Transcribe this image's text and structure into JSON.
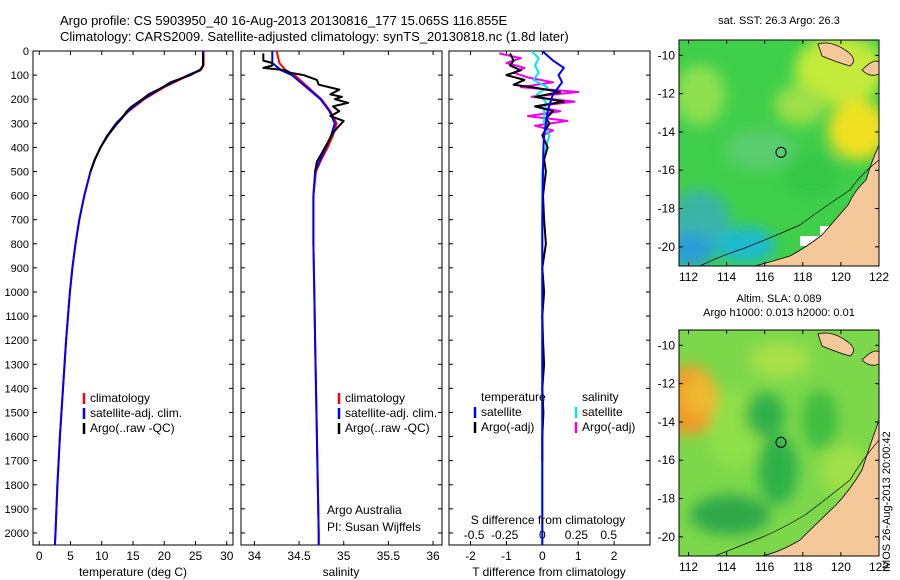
{
  "header": {
    "title_line1": "Argo profile: CS 5903950_40 16-Aug-2013 20130816_177 15.065S 116.855E",
    "title_line2": "Climatology: CARS2009. Satellite-adjusted climatology: synTS_20130818.nc (1.8d later)"
  },
  "credit": "IMOS 26-Aug-2013 20:00:42",
  "colors": {
    "climatology": "#ff0000",
    "satellite": "#0000ff",
    "argo": "#000000",
    "salinity_satellite": "#00e5ee",
    "salinity_argo": "#ee00ee",
    "land": "#f5c89a"
  },
  "chart_data": [
    {
      "id": "temperature",
      "type": "line",
      "xlabel": "temperature (deg C)",
      "ylabel": "",
      "xlim": [
        -1,
        31
      ],
      "ylim": [
        2050,
        0
      ],
      "xticks": [
        0,
        5,
        10,
        15,
        20,
        25,
        30
      ],
      "yticks": [
        0,
        100,
        200,
        300,
        400,
        500,
        600,
        700,
        800,
        900,
        1000,
        1100,
        1200,
        1300,
        1400,
        1500,
        1600,
        1700,
        1800,
        1900,
        2000
      ],
      "legend": [
        "climatology",
        "satellite-adj. clim.",
        "Argo(..raw -QC)"
      ],
      "series": [
        {
          "name": "climatology",
          "color": "#ff0000",
          "depth": [
            0,
            60,
            80,
            100,
            150,
            200,
            250,
            300,
            350,
            400,
            450,
            500,
            600,
            700,
            800,
            900,
            1000,
            1200,
            1400,
            1600,
            1800,
            2000,
            2050
          ],
          "values": [
            26.3,
            26.3,
            25.8,
            24.0,
            20.0,
            16.8,
            14.3,
            12.4,
            11.0,
            9.8,
            8.9,
            8.2,
            7.2,
            6.4,
            5.8,
            5.3,
            4.9,
            4.3,
            3.8,
            3.3,
            2.9,
            2.6,
            2.5
          ]
        },
        {
          "name": "satellite-adj. clim.",
          "color": "#0000ff",
          "depth": [
            0,
            60,
            80,
            100,
            150,
            200,
            250,
            300,
            350,
            400,
            450,
            500,
            600,
            700,
            800,
            900,
            1000,
            1200,
            1400,
            1600,
            1800,
            2000,
            2050
          ],
          "values": [
            26.2,
            26.2,
            25.7,
            23.8,
            19.8,
            16.6,
            14.2,
            12.3,
            10.9,
            9.8,
            8.9,
            8.2,
            7.2,
            6.4,
            5.8,
            5.3,
            4.9,
            4.3,
            3.8,
            3.3,
            2.9,
            2.6,
            2.5
          ]
        },
        {
          "name": "Argo(..raw -QC)",
          "color": "#000000",
          "depth": [
            10,
            60,
            75,
            100,
            130,
            150,
            180,
            200,
            230,
            250,
            280,
            300,
            350,
            400,
            450,
            500
          ],
          "values": [
            26.2,
            26.2,
            25.9,
            24.2,
            21.0,
            19.8,
            17.5,
            16.5,
            14.8,
            14.0,
            13.2,
            12.5,
            11.0,
            9.8,
            8.9,
            8.2
          ]
        }
      ]
    },
    {
      "id": "salinity",
      "type": "line",
      "xlabel": "salinity",
      "ylabel": "",
      "xlim": [
        33.85,
        36.1
      ],
      "ylim": [
        2050,
        0
      ],
      "xticks": [
        34,
        34.5,
        35,
        35.5,
        36
      ],
      "xticklabels": [
        "34",
        "34.5",
        "35",
        "35.5",
        "36"
      ],
      "legend": [
        "climatology",
        "satellite-adj. clim.",
        "Argo(..raw -QC)"
      ],
      "annotation": [
        "Argo Australia",
        "PI: Susan Wijffels"
      ],
      "series": [
        {
          "name": "climatology",
          "color": "#ff0000",
          "depth": [
            0,
            50,
            80,
            100,
            150,
            200,
            250,
            300,
            350,
            400,
            450,
            500,
            600,
            800,
            1000,
            1200,
            1400,
            1600,
            1800,
            2000,
            2050
          ],
          "values": [
            34.25,
            34.28,
            34.35,
            34.45,
            34.6,
            34.75,
            34.85,
            34.92,
            34.88,
            34.82,
            34.75,
            34.69,
            34.66,
            34.66,
            34.67,
            34.68,
            34.69,
            34.7,
            34.71,
            34.72,
            34.72
          ]
        },
        {
          "name": "satellite-adj. clim.",
          "color": "#0000ff",
          "depth": [
            0,
            50,
            80,
            100,
            150,
            200,
            250,
            300,
            350,
            400,
            450,
            500,
            600,
            800,
            1000,
            1200,
            1400,
            1600,
            1800,
            2000,
            2050
          ],
          "values": [
            34.2,
            34.2,
            34.3,
            34.42,
            34.58,
            34.74,
            34.84,
            34.9,
            34.86,
            34.8,
            34.74,
            34.68,
            34.66,
            34.66,
            34.67,
            34.68,
            34.69,
            34.7,
            34.71,
            34.72,
            34.72
          ]
        },
        {
          "name": "Argo(..raw -QC)",
          "color": "#000000",
          "depth": [
            10,
            40,
            50,
            60,
            70,
            80,
            90,
            100,
            120,
            140,
            160,
            180,
            190,
            200,
            215,
            230,
            250,
            270,
            290,
            310,
            340,
            380,
            420,
            460,
            500
          ],
          "values": [
            34.1,
            34.1,
            34.2,
            34.2,
            34.1,
            34.35,
            34.4,
            34.55,
            34.7,
            34.72,
            34.95,
            34.85,
            34.98,
            34.9,
            35.05,
            34.88,
            34.95,
            34.85,
            35.0,
            34.95,
            34.88,
            34.82,
            34.76,
            34.7,
            34.68
          ]
        }
      ]
    },
    {
      "id": "difference",
      "type": "line",
      "xlabel": "T difference from climatology",
      "xlabel_secondary": "S difference from climatology",
      "xlim": [
        -2.6,
        3
      ],
      "ylim": [
        2050,
        0
      ],
      "xticks": [
        -2,
        -1,
        0,
        1,
        2
      ],
      "secondary_xticklabels": [
        "-0.5",
        "-0.25",
        "0",
        "0.25",
        "0.5"
      ],
      "legend_headers": [
        "temperature",
        "salinity"
      ],
      "legend": [
        "satellite",
        "Argo(-adj)",
        "satellite",
        "Argo(-adj)"
      ],
      "series": [
        {
          "name": "satellite",
          "group": "temperature",
          "color": "#0000ff",
          "depth": [
            0,
            40,
            70,
            100,
            130,
            150,
            180,
            200,
            250,
            300,
            350,
            400,
            500,
            700,
            1000,
            1500,
            2000,
            2050
          ],
          "values": [
            0,
            0.3,
            0.6,
            0.45,
            0.55,
            0.45,
            0.3,
            0.25,
            0.15,
            0.1,
            0.05,
            0.03,
            0.02,
            0,
            0,
            0,
            0,
            0
          ]
        },
        {
          "name": "Argo(-adj)",
          "group": "temperature",
          "color": "#000000",
          "depth": [
            10,
            40,
            60,
            80,
            100,
            120,
            140,
            150,
            170,
            190,
            210,
            230,
            250,
            280,
            300,
            350,
            400,
            450,
            500,
            600,
            700,
            800,
            900,
            1000,
            1100,
            1200,
            1300,
            1400,
            1500,
            1600,
            1700
          ],
          "values": [
            -0.9,
            -0.8,
            -0.9,
            -0.6,
            -1.0,
            -0.5,
            -0.8,
            -0.3,
            0.5,
            -0.2,
            0.6,
            -0.2,
            0.3,
            0.1,
            0.2,
            0,
            0.15,
            0.05,
            0.1,
            0.02,
            0.05,
            0.1,
            0,
            0.05,
            0,
            0.02,
            0.05,
            0,
            0.03,
            0,
            0
          ]
        },
        {
          "name": "satellite",
          "group": "salinity",
          "color": "#00e5ee",
          "depth": [
            0,
            30,
            60,
            90,
            120,
            150,
            180,
            210,
            250,
            300,
            350,
            400,
            450,
            500,
            700,
            1000,
            1500,
            2000,
            2050
          ],
          "values": [
            -0.3,
            -0.1,
            -0.2,
            -0.1,
            -0.25,
            0.15,
            -0.15,
            0.1,
            0.05,
            0.05,
            0.2,
            0.1,
            0.05,
            0,
            0,
            0,
            0,
            0,
            0
          ]
        },
        {
          "name": "Argo(-adj)",
          "group": "salinity",
          "color": "#ee00ee",
          "depth": [
            10,
            30,
            50,
            70,
            90,
            110,
            130,
            150,
            170,
            190,
            210,
            230,
            250,
            270,
            290,
            310,
            330,
            350
          ],
          "values": [
            -1.2,
            -0.6,
            -1.0,
            -0.5,
            -0.8,
            -0.4,
            0.3,
            -0.6,
            1.0,
            -0.3,
            0.9,
            -0.2,
            0.5,
            -0.4,
            0.7,
            -0.2,
            0.3,
            0
          ]
        }
      ]
    },
    {
      "id": "sst_map",
      "type": "heatmap",
      "title": "sat. SST: 26.3 Argo: 26.3",
      "xlim": [
        111.5,
        122
      ],
      "ylim": [
        -21,
        -9.2
      ],
      "xticks": [
        112,
        114,
        116,
        118,
        120,
        122
      ],
      "yticks": [
        -10,
        -12,
        -14,
        -16,
        -18,
        -20
      ],
      "marker": {
        "lon": 116.855,
        "lat": -15.065
      }
    },
    {
      "id": "sla_map",
      "type": "heatmap",
      "title_line1": "Altim. SLA: 0.089",
      "title_line2": "Argo h1000: 0.013 h2000: 0.01",
      "xlim": [
        111.5,
        122
      ],
      "ylim": [
        -21,
        -9.2
      ],
      "xticks": [
        112,
        114,
        116,
        118,
        120,
        122
      ],
      "yticks": [
        -10,
        -12,
        -14,
        -16,
        -18,
        -20
      ],
      "marker": {
        "lon": 116.855,
        "lat": -15.065
      }
    }
  ]
}
